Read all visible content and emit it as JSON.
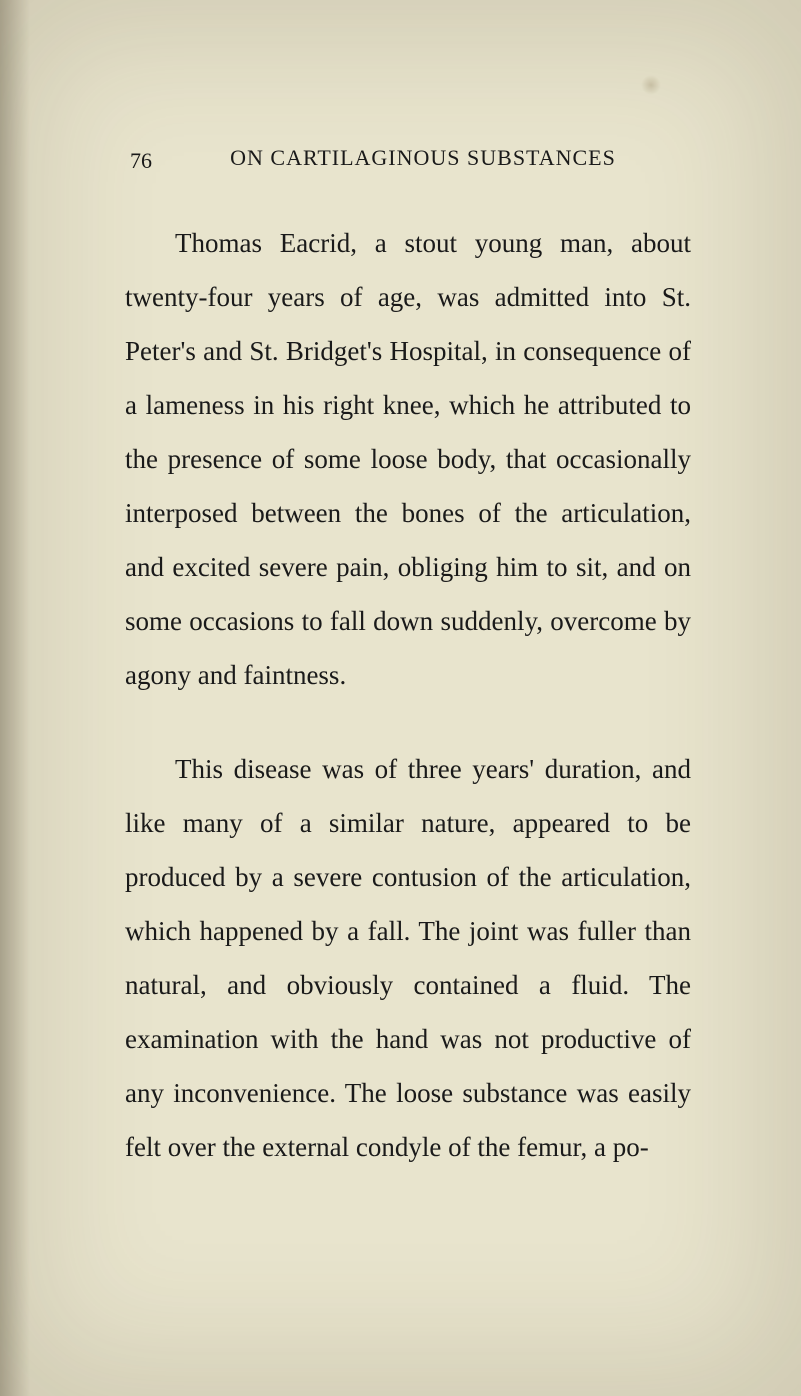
{
  "page": {
    "number": "76",
    "running_header": "ON CARTILAGINOUS SUBSTANCES",
    "paragraphs": [
      "Thomas Eacrid, a stout young man, about twenty-four years of age, was ad­mitted into St. Peter's and St. Bridget's Hospital, in consequence of a lameness in his right knee, which he attributed to the presence of some loose body, that oc­casionally interposed between the bones of the articulation, and excited severe pain, obliging him to sit, and on some occasions to fall down suddenly, overcome by agony and faintness.",
      "This disease was of three years' du­ration, and like many of a similar nature, appeared to be produced by a severe contusion of the articulation, which hap­pened by a fall. The joint was fuller than natural, and obviously contained a fluid. The examination with the hand was not productive of any inconvenience. The loose substance was easily felt over the external condyle of the femur, a po-"
    ]
  },
  "style": {
    "background_color": "#e8e4cd",
    "text_color": "#1a1a1a",
    "body_fontsize": 27,
    "header_fontsize": 22,
    "line_height": 2.0,
    "font_family": "Georgia, Times New Roman, serif"
  }
}
